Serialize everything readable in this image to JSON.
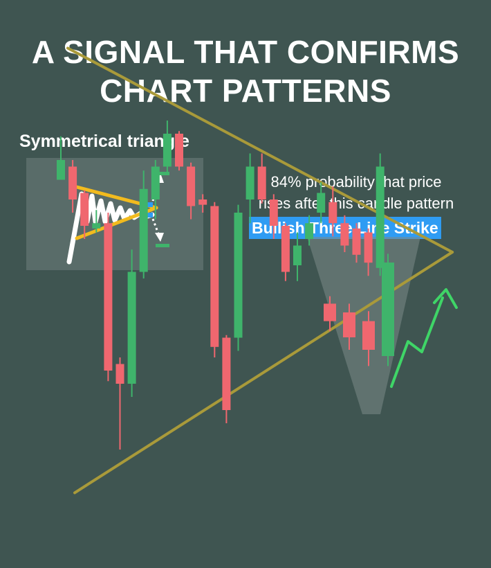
{
  "title": {
    "line1": "A SIGNAL THAT CONFIRMS",
    "line2": "CHART PATTERNS"
  },
  "inset": {
    "label": "Symmetrical triangle"
  },
  "annotation": {
    "line1": "84% probability that price",
    "line2": "rises after this candle pattern",
    "pattern_name": "Bullish Three Line Strike"
  },
  "colors": {
    "background": "#3f5551",
    "bullish": "#3fb46b",
    "bearish": "#f0676f",
    "trendline": "#a99a3a",
    "arrow": "#3fd567",
    "highlight": "#2f9cf3"
  },
  "chart_data": {
    "type": "candlestick",
    "pattern": "symmetrical triangle",
    "candles": [
      {
        "dir": "up",
        "open": 295,
        "close": 310,
        "high": 328,
        "low": 295
      },
      {
        "dir": "down",
        "open": 305,
        "close": 280,
        "high": 310,
        "low": 270
      },
      {
        "dir": "down",
        "open": 285,
        "close": 260,
        "high": 287,
        "low": 250
      },
      {
        "dir": "up",
        "open": 258,
        "close": 262,
        "high": 272,
        "low": 255
      },
      {
        "dir": "down",
        "open": 262,
        "close": 150,
        "high": 270,
        "low": 142
      },
      {
        "dir": "down",
        "open": 155,
        "close": 140,
        "high": 160,
        "low": 90
      },
      {
        "dir": "up",
        "open": 140,
        "close": 225,
        "high": 242,
        "low": 130
      },
      {
        "dir": "up",
        "open": 225,
        "close": 288,
        "high": 302,
        "low": 220
      },
      {
        "dir": "up",
        "open": 280,
        "close": 305,
        "high": 310,
        "low": 265
      },
      {
        "dir": "up",
        "open": 305,
        "close": 330,
        "high": 340,
        "low": 300
      },
      {
        "dir": "down",
        "open": 330,
        "close": 305,
        "high": 332,
        "low": 302
      },
      {
        "dir": "down",
        "open": 305,
        "close": 275,
        "high": 308,
        "low": 265
      },
      {
        "dir": "down",
        "open": 280,
        "close": 276,
        "high": 284,
        "low": 270
      },
      {
        "dir": "down",
        "open": 275,
        "close": 168,
        "high": 278,
        "low": 160
      },
      {
        "dir": "down",
        "open": 175,
        "close": 120,
        "high": 177,
        "low": 110
      },
      {
        "dir": "up",
        "open": 175,
        "close": 270,
        "high": 276,
        "low": 165
      },
      {
        "dir": "up",
        "open": 280,
        "close": 305,
        "high": 315,
        "low": 262
      },
      {
        "dir": "down",
        "open": 305,
        "close": 280,
        "high": 315,
        "low": 277
      },
      {
        "dir": "down",
        "open": 280,
        "close": 260,
        "high": 284,
        "low": 250
      },
      {
        "dir": "down",
        "open": 260,
        "close": 225,
        "high": 262,
        "low": 218
      },
      {
        "dir": "up",
        "open": 230,
        "close": 245,
        "high": 255,
        "low": 218
      },
      {
        "dir": "up",
        "open": 250,
        "close": 262,
        "high": 268,
        "low": 245
      },
      {
        "dir": "up",
        "open": 270,
        "close": 285,
        "high": 293,
        "low": 262
      },
      {
        "dir": "down",
        "open": 278,
        "close": 262,
        "high": 290,
        "low": 252
      },
      {
        "dir": "down",
        "open": 262,
        "close": 245,
        "high": 268,
        "low": 240
      },
      {
        "dir": "down",
        "open": 258,
        "close": 238,
        "high": 262,
        "low": 232
      },
      {
        "dir": "down",
        "open": 255,
        "close": 232,
        "high": 258,
        "low": 222
      },
      {
        "dir": "up",
        "open": 228,
        "close": 305,
        "high": 315,
        "low": 222
      }
    ],
    "zoom_candles": [
      {
        "dir": "down",
        "open": 312,
        "close": 298,
        "high": 318,
        "low": 290
      },
      {
        "dir": "down",
        "open": 305,
        "close": 285,
        "high": 312,
        "low": 275
      },
      {
        "dir": "down",
        "open": 298,
        "close": 275,
        "high": 306,
        "low": 262
      },
      {
        "dir": "up",
        "open": 270,
        "close": 345,
        "high": 352,
        "low": 262
      }
    ],
    "trendlines": {
      "upper": [
        [
          0,
          398
        ],
        [
          31,
          240
        ]
      ],
      "lower": [
        [
          0,
          50
        ],
        [
          31,
          240
        ]
      ]
    }
  }
}
